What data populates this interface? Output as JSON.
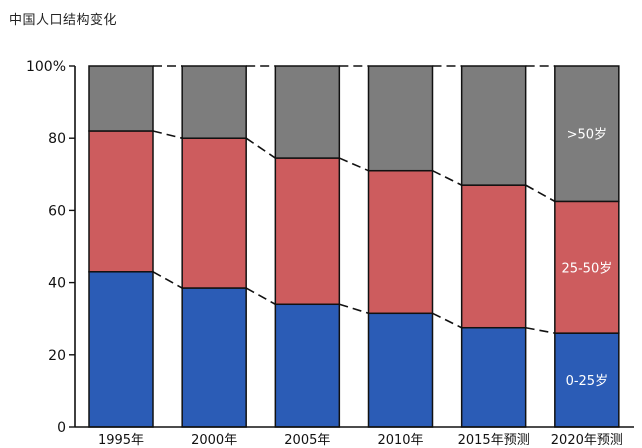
{
  "chart_data": {
    "type": "bar",
    "stacked": true,
    "title": "中国人口结构变化",
    "categories": [
      "1995年",
      "2000年",
      "2005年",
      "2010年",
      "2015年预测",
      "2020年预测"
    ],
    "series": [
      {
        "name": "0-25岁",
        "color": "#2b5cb6",
        "values": [
          43,
          38.5,
          34,
          31.5,
          27.5,
          26
        ]
      },
      {
        "name": "25-50岁",
        "color": "#cd5c5e",
        "values": [
          39,
          41.5,
          40.5,
          39.5,
          39.5,
          36.5
        ]
      },
      {
        "name": ">50岁",
        "color": "#7d7d7d",
        "values": [
          18,
          20,
          25.5,
          29,
          33,
          37.5
        ]
      }
    ],
    "yticks": [
      "0",
      "20",
      "40",
      "60",
      "80",
      "100%"
    ],
    "ylim": [
      0,
      100
    ],
    "connector_lines": "dashed",
    "grid": false
  }
}
